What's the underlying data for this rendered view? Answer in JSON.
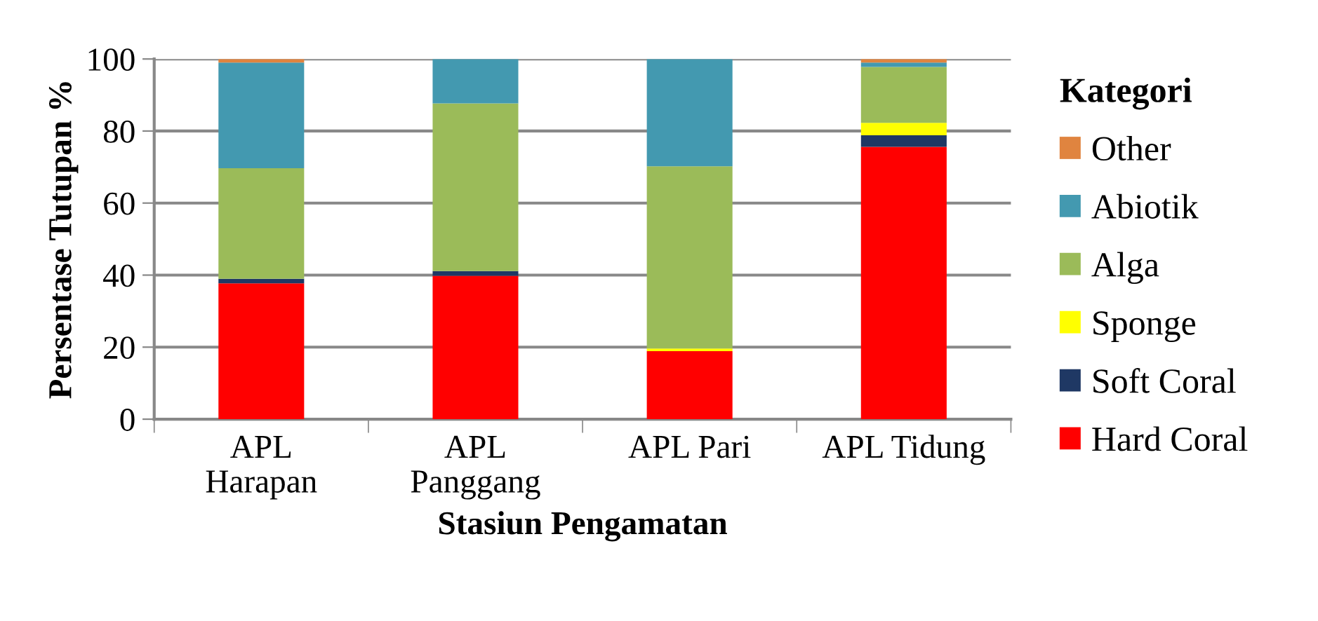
{
  "chart_data": {
    "type": "bar",
    "stacked": true,
    "xlabel": "Stasiun Pengamatan",
    "ylabel": "Persentase Tutupan %",
    "legend_title": "Kategori",
    "categories": [
      "APL\nHarapan",
      "APL\nPanggang",
      "APL Pari",
      "APL Tidung"
    ],
    "series": [
      {
        "name": "Hard Coral",
        "color": "#ff0000",
        "values": [
          37.7,
          39.8,
          18.9,
          75.6
        ]
      },
      {
        "name": "Soft Coral",
        "color": "#1f3864",
        "values": [
          1.3,
          1.3,
          0,
          3.2
        ]
      },
      {
        "name": "Sponge",
        "color": "#ffff00",
        "values": [
          0,
          0,
          0.7,
          3.5
        ]
      },
      {
        "name": "Alga",
        "color": "#9bbb59",
        "values": [
          30.7,
          46.6,
          50.6,
          15.5
        ]
      },
      {
        "name": "Abiotik",
        "color": "#4399b0",
        "values": [
          29.3,
          12.3,
          29.8,
          1.2
        ]
      },
      {
        "name": "Other",
        "color": "#e0843f",
        "values": [
          1.0,
          0,
          0,
          1.0
        ]
      }
    ],
    "ylim": [
      0,
      100
    ],
    "yticks": [
      0,
      20,
      40,
      60,
      80,
      100
    ],
    "grid": "y",
    "legend": "right"
  }
}
